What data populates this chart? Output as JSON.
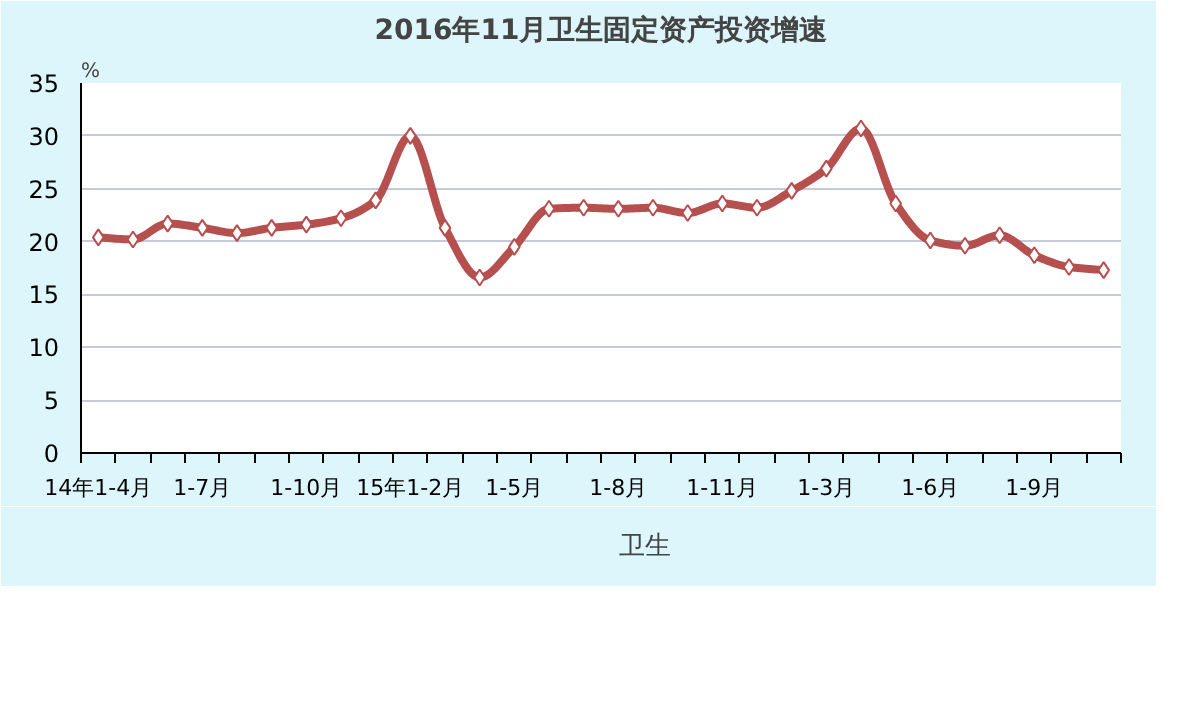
{
  "chart_data": {
    "type": "line",
    "title": "2016年11月卫生固定资产投资增速",
    "ylabel": "%",
    "categories": [
      "14年1-4月",
      null,
      null,
      "1-7月",
      null,
      null,
      "1-10月",
      null,
      null,
      "15年1-2月",
      null,
      null,
      "1-5月",
      null,
      null,
      "1-8月",
      null,
      null,
      "1-11月",
      null,
      null,
      "1-3月",
      null,
      null,
      "1-6月",
      null,
      null,
      "1-9月",
      null,
      null
    ],
    "series": [
      {
        "name": "卫生",
        "color": "#b5504f",
        "values": [
          20.4,
          20.2,
          21.7,
          21.3,
          20.8,
          21.3,
          21.6,
          22.2,
          23.9,
          30.0,
          21.3,
          16.6,
          19.5,
          23.1,
          23.2,
          23.1,
          23.2,
          22.7,
          23.6,
          23.2,
          24.8,
          26.9,
          30.7,
          23.6,
          20.1,
          19.6,
          20.6,
          18.7,
          17.6,
          17.3
        ]
      }
    ],
    "ylim": [
      0,
      35
    ],
    "yticks": [
      0,
      5,
      10,
      15,
      20,
      25,
      30,
      35
    ],
    "grid": "y",
    "legend": "bottom",
    "marker": "diamond",
    "line_style": "solid"
  }
}
